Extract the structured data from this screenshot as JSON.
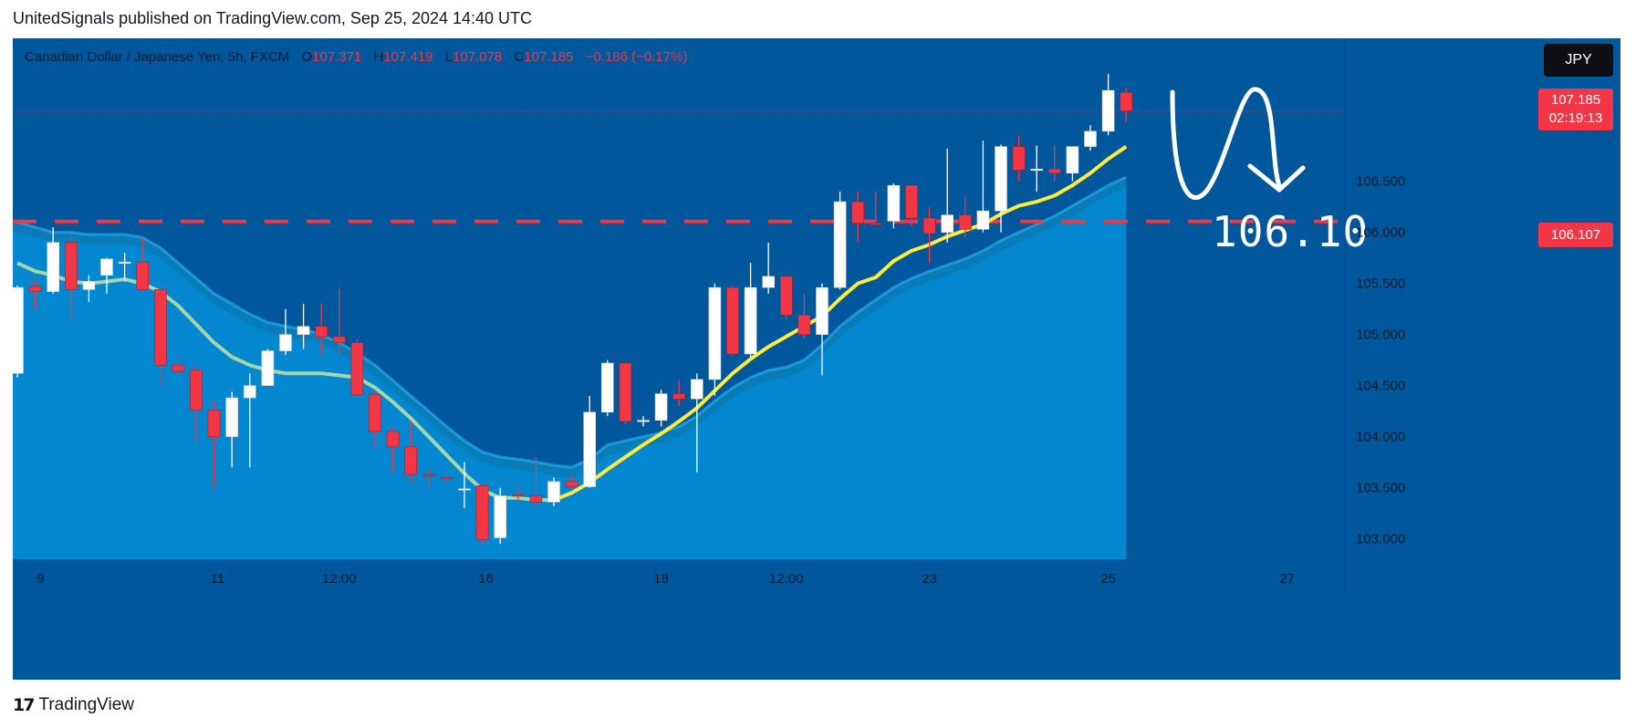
{
  "publisher_line": "UnitedSignals published on TradingView.com, Sep 25, 2024 14:40 UTC",
  "legend": {
    "symbol": "Canadian Dollar / Japanese Yen, 5h, FXCM",
    "o_key": "O",
    "o_val": "107.371",
    "h_key": "H",
    "h_val": "107.419",
    "l_key": "L",
    "l_val": "107.078",
    "c_key": "C",
    "c_val": "107.185",
    "change": "−0.186 (−0.17%)"
  },
  "currency_button": "JPY",
  "price_tag": {
    "price": "107.185",
    "countdown": "02:19:13"
  },
  "level_tag": "106.107",
  "annotation_text": "106.10",
  "logo_text": "TradingView",
  "colors": {
    "background": "#01579b",
    "bull": "#ffffff",
    "bear": "#f23645",
    "ema_fast": "#ffeb3b",
    "ema_slow": "#a5d6a7",
    "cloud": "#0288d1",
    "level": "#f23645"
  },
  "chart_data": {
    "type": "candlestick",
    "symbol": "Canadian Dollar / Japanese Yen, 5h, FXCM",
    "ylim": [
      102.8,
      107.9
    ],
    "y_ticks": [
      106.5,
      106.0,
      105.5,
      105.0,
      104.5,
      104.0,
      103.5,
      103.0
    ],
    "y_tick_labels": [
      "106.500",
      "106.000",
      "105.500",
      "105.000",
      "104.500",
      "104.000",
      "103.500",
      "103.000"
    ],
    "x_ticks": [
      {
        "index": 1.3,
        "label": "9"
      },
      {
        "index": 11.2,
        "label": "11"
      },
      {
        "index": 18,
        "label": "12:00"
      },
      {
        "index": 26.2,
        "label": "16"
      },
      {
        "index": 36,
        "label": "18"
      },
      {
        "index": 43,
        "label": "12:00"
      },
      {
        "index": 51,
        "label": "23"
      },
      {
        "index": 61,
        "label": "25"
      },
      {
        "index": 71,
        "label": "27"
      }
    ],
    "candles": [
      {
        "o": 104.62,
        "h": 105.48,
        "l": 104.58,
        "c": 105.46
      },
      {
        "o": 105.47,
        "h": 105.55,
        "l": 105.24,
        "c": 105.42
      },
      {
        "o": 105.42,
        "h": 106.05,
        "l": 105.4,
        "c": 105.9
      },
      {
        "o": 105.9,
        "h": 105.95,
        "l": 105.14,
        "c": 105.44
      },
      {
        "o": 105.44,
        "h": 105.58,
        "l": 105.32,
        "c": 105.52
      },
      {
        "o": 105.58,
        "h": 105.75,
        "l": 105.4,
        "c": 105.74
      },
      {
        "o": 105.7,
        "h": 105.8,
        "l": 105.52,
        "c": 105.71
      },
      {
        "o": 105.71,
        "h": 105.95,
        "l": 105.42,
        "c": 105.44
      },
      {
        "o": 105.44,
        "h": 105.48,
        "l": 104.5,
        "c": 104.7
      },
      {
        "o": 104.7,
        "h": 104.8,
        "l": 104.6,
        "c": 104.64
      },
      {
        "o": 104.65,
        "h": 104.7,
        "l": 103.95,
        "c": 104.26
      },
      {
        "o": 104.26,
        "h": 104.35,
        "l": 103.5,
        "c": 104.0
      },
      {
        "o": 104.0,
        "h": 104.44,
        "l": 103.7,
        "c": 104.38
      },
      {
        "o": 104.38,
        "h": 104.62,
        "l": 103.7,
        "c": 104.5
      },
      {
        "o": 104.5,
        "h": 104.86,
        "l": 104.5,
        "c": 104.84
      },
      {
        "o": 104.84,
        "h": 105.25,
        "l": 104.8,
        "c": 105.0
      },
      {
        "o": 105.0,
        "h": 105.3,
        "l": 104.86,
        "c": 105.08
      },
      {
        "o": 105.08,
        "h": 105.3,
        "l": 104.8,
        "c": 104.98
      },
      {
        "o": 104.98,
        "h": 105.45,
        "l": 104.8,
        "c": 104.92
      },
      {
        "o": 104.92,
        "h": 104.95,
        "l": 104.4,
        "c": 104.41
      },
      {
        "o": 104.41,
        "h": 104.45,
        "l": 103.88,
        "c": 104.05
      },
      {
        "o": 104.05,
        "h": 104.1,
        "l": 103.65,
        "c": 103.9
      },
      {
        "o": 103.9,
        "h": 104.15,
        "l": 103.55,
        "c": 103.63
      },
      {
        "o": 103.63,
        "h": 103.7,
        "l": 103.5,
        "c": 103.62
      },
      {
        "o": 103.6,
        "h": 103.66,
        "l": 103.55,
        "c": 103.59
      },
      {
        "o": 103.48,
        "h": 103.75,
        "l": 103.3,
        "c": 103.49
      },
      {
        "o": 103.52,
        "h": 103.52,
        "l": 102.95,
        "c": 102.99
      },
      {
        "o": 103.01,
        "h": 103.5,
        "l": 102.95,
        "c": 103.42
      },
      {
        "o": 103.43,
        "h": 103.55,
        "l": 103.35,
        "c": 103.42
      },
      {
        "o": 103.42,
        "h": 103.8,
        "l": 103.3,
        "c": 103.36
      },
      {
        "o": 103.36,
        "h": 103.6,
        "l": 103.32,
        "c": 103.56
      },
      {
        "o": 103.56,
        "h": 103.62,
        "l": 103.5,
        "c": 103.51
      },
      {
        "o": 103.51,
        "h": 104.4,
        "l": 103.5,
        "c": 104.24
      },
      {
        "o": 104.24,
        "h": 104.75,
        "l": 104.2,
        "c": 104.72
      },
      {
        "o": 104.72,
        "h": 104.72,
        "l": 104.12,
        "c": 104.15
      },
      {
        "o": 104.15,
        "h": 104.2,
        "l": 104.1,
        "c": 104.16
      },
      {
        "o": 104.16,
        "h": 104.46,
        "l": 104.1,
        "c": 104.42
      },
      {
        "o": 104.42,
        "h": 104.55,
        "l": 104.3,
        "c": 104.37
      },
      {
        "o": 104.37,
        "h": 104.62,
        "l": 103.65,
        "c": 104.56
      },
      {
        "o": 104.56,
        "h": 105.5,
        "l": 104.4,
        "c": 105.46
      },
      {
        "o": 105.46,
        "h": 105.48,
        "l": 104.79,
        "c": 104.81
      },
      {
        "o": 104.81,
        "h": 105.7,
        "l": 104.78,
        "c": 105.46
      },
      {
        "o": 105.46,
        "h": 105.9,
        "l": 105.4,
        "c": 105.57
      },
      {
        "o": 105.57,
        "h": 105.56,
        "l": 105.15,
        "c": 105.19
      },
      {
        "o": 105.19,
        "h": 105.4,
        "l": 104.96,
        "c": 105.0
      },
      {
        "o": 105.0,
        "h": 105.5,
        "l": 104.6,
        "c": 105.46
      },
      {
        "o": 105.46,
        "h": 106.4,
        "l": 105.44,
        "c": 106.3
      },
      {
        "o": 106.3,
        "h": 106.4,
        "l": 105.9,
        "c": 106.09
      },
      {
        "o": 106.09,
        "h": 106.4,
        "l": 106.08,
        "c": 106.08
      },
      {
        "o": 106.11,
        "h": 106.48,
        "l": 106.04,
        "c": 106.46
      },
      {
        "o": 106.46,
        "h": 106.46,
        "l": 106.06,
        "c": 106.14
      },
      {
        "o": 106.14,
        "h": 106.25,
        "l": 105.7,
        "c": 105.99
      },
      {
        "o": 106.0,
        "h": 106.82,
        "l": 105.9,
        "c": 106.17
      },
      {
        "o": 106.17,
        "h": 106.35,
        "l": 105.95,
        "c": 106.03
      },
      {
        "o": 106.03,
        "h": 106.9,
        "l": 106.0,
        "c": 106.21
      },
      {
        "o": 106.21,
        "h": 106.86,
        "l": 106.0,
        "c": 106.84
      },
      {
        "o": 106.84,
        "h": 106.95,
        "l": 106.5,
        "c": 106.61
      },
      {
        "o": 106.61,
        "h": 106.85,
        "l": 106.4,
        "c": 106.62
      },
      {
        "o": 106.62,
        "h": 106.85,
        "l": 106.5,
        "c": 106.58
      },
      {
        "o": 106.58,
        "h": 106.84,
        "l": 106.5,
        "c": 106.84
      },
      {
        "o": 106.84,
        "h": 107.05,
        "l": 106.8,
        "c": 106.99
      },
      {
        "o": 106.99,
        "h": 107.55,
        "l": 106.95,
        "c": 107.39
      },
      {
        "o": 107.37,
        "h": 107.42,
        "l": 107.08,
        "c": 107.19
      }
    ],
    "ema_fast": [
      105.7,
      105.62,
      105.58,
      105.52,
      105.5,
      105.52,
      105.54,
      105.5,
      105.42,
      105.28,
      105.1,
      104.92,
      104.78,
      104.7,
      104.65,
      104.62,
      104.62,
      104.62,
      104.6,
      104.58,
      104.48,
      104.34,
      104.18,
      104.0,
      103.82,
      103.64,
      103.48,
      103.4,
      103.4,
      103.38,
      103.38,
      103.45,
      103.55,
      103.68,
      103.8,
      103.92,
      104.03,
      104.15,
      104.28,
      104.45,
      104.62,
      104.76,
      104.88,
      104.98,
      105.08,
      105.18,
      105.35,
      105.5,
      105.56,
      105.72,
      105.82,
      105.88,
      105.96,
      106.02,
      106.08,
      106.18,
      106.26,
      106.3,
      106.36,
      106.46,
      106.58,
      106.72,
      106.84
    ],
    "cloud_upper": [
      106.1,
      106.05,
      106.0,
      106.0,
      105.98,
      105.98,
      105.98,
      105.95,
      105.85,
      105.7,
      105.55,
      105.4,
      105.3,
      105.2,
      105.12,
      105.08,
      105.05,
      105.0,
      104.92,
      104.82,
      104.7,
      104.55,
      104.4,
      104.25,
      104.1,
      103.96,
      103.85,
      103.8,
      103.78,
      103.75,
      103.72,
      103.7,
      103.78,
      103.92,
      103.96,
      104.0,
      104.04,
      104.1,
      104.2,
      104.35,
      104.48,
      104.58,
      104.65,
      104.68,
      104.75,
      104.9,
      105.08,
      105.22,
      105.34,
      105.46,
      105.55,
      105.62,
      105.68,
      105.74,
      105.82,
      105.92,
      106.0,
      106.08,
      106.16,
      106.26,
      106.36,
      106.46,
      106.54
    ],
    "cloud_lower": [
      106.0,
      105.95,
      105.92,
      105.9,
      105.88,
      105.88,
      105.88,
      105.85,
      105.75,
      105.6,
      105.45,
      105.3,
      105.2,
      105.1,
      105.02,
      104.98,
      104.95,
      104.9,
      104.82,
      104.72,
      104.6,
      104.45,
      104.3,
      104.15,
      104.0,
      103.86,
      103.75,
      103.7,
      103.68,
      103.65,
      103.62,
      103.6,
      103.68,
      103.82,
      103.86,
      103.9,
      103.94,
      104.0,
      104.1,
      104.25,
      104.38,
      104.48,
      104.55,
      104.58,
      104.65,
      104.8,
      104.98,
      105.12,
      105.24,
      105.36,
      105.45,
      105.52,
      105.58,
      105.64,
      105.72,
      105.82,
      105.9,
      105.98,
      106.06,
      106.16,
      106.26,
      106.36,
      106.44
    ],
    "horizontal_level": 106.107,
    "last_price": 107.185
  }
}
